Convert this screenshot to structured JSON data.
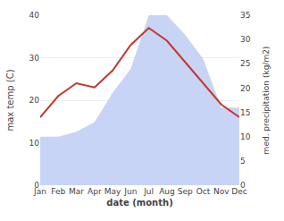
{
  "chart_data": {
    "type": "line",
    "categories": [
      "Jan",
      "Feb",
      "Mar",
      "Apr",
      "May",
      "Jun",
      "Jul",
      "Aug",
      "Sep",
      "Oct",
      "Nov",
      "Dec"
    ],
    "series": [
      {
        "type": "area",
        "axis": "y2",
        "color": "#c8d4f5",
        "values": [
          10,
          10,
          11,
          13,
          19,
          24,
          35,
          35,
          31,
          26,
          16,
          16
        ]
      },
      {
        "type": "line",
        "color": "#c0392b",
        "values": [
          16,
          21,
          24,
          23,
          27,
          33,
          37,
          34,
          29,
          24,
          19,
          16
        ]
      }
    ],
    "xlabel": "date (month)",
    "ylabel": "max temp (C)",
    "y2label": "med. precipitation (kg/m2)",
    "ylim": [
      0,
      40
    ],
    "yticks": [
      0,
      10,
      20,
      30,
      40
    ],
    "y2lim": [
      0,
      35
    ],
    "y2ticks": [
      0,
      5,
      10,
      15,
      20,
      25,
      30,
      35
    ],
    "grid": true
  }
}
